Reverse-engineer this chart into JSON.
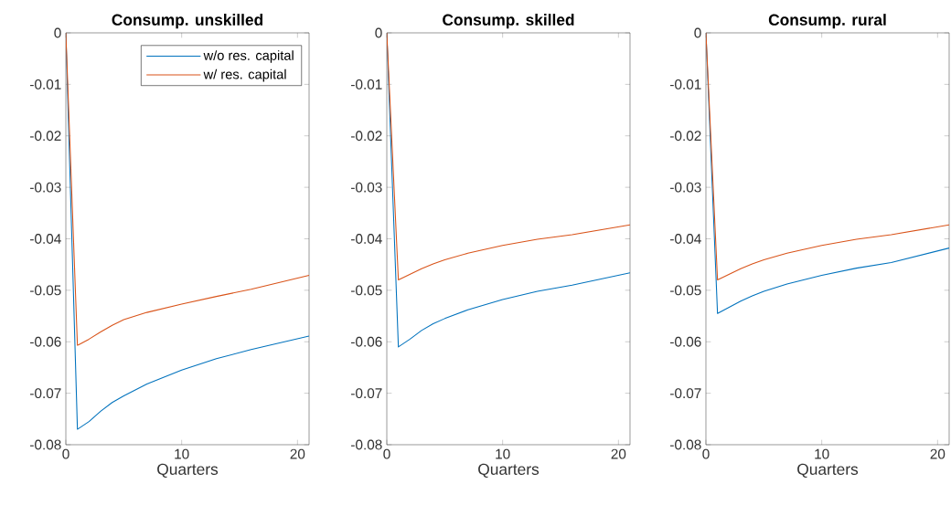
{
  "chart_data": [
    {
      "type": "line",
      "title": "Consump. unskilled",
      "xlabel": "Quarters",
      "x": [
        0,
        1,
        2,
        3,
        4,
        5,
        7,
        10,
        13,
        16,
        21
      ],
      "xlim": [
        0,
        21
      ],
      "xticks": [
        0,
        10,
        20
      ],
      "ylim": [
        -0.08,
        0
      ],
      "yticks": [
        -0.08,
        -0.07,
        -0.06,
        -0.05,
        -0.04,
        -0.03,
        -0.02,
        -0.01,
        0
      ],
      "legend": "top right",
      "series": [
        {
          "name": "w/o res. capital",
          "color": "#0072bd",
          "values": [
            0,
            -0.077,
            -0.0755,
            -0.0735,
            -0.0718,
            -0.0705,
            -0.0682,
            -0.0655,
            -0.0633,
            -0.0615,
            -0.0589
          ]
        },
        {
          "name": "w/ res. capital",
          "color": "#d95319",
          "values": [
            0,
            -0.0607,
            -0.0595,
            -0.0581,
            -0.0568,
            -0.0557,
            -0.0543,
            -0.0527,
            -0.0512,
            -0.0498,
            -0.0471
          ]
        }
      ]
    },
    {
      "type": "line",
      "title": "Consump. skilled",
      "xlabel": "Quarters",
      "x": [
        0,
        1,
        2,
        3,
        4,
        5,
        7,
        10,
        13,
        16,
        21
      ],
      "xlim": [
        0,
        21
      ],
      "xticks": [
        0,
        10,
        20
      ],
      "ylim": [
        -0.08,
        0
      ],
      "yticks": [
        -0.08,
        -0.07,
        -0.06,
        -0.05,
        -0.04,
        -0.03,
        -0.02,
        -0.01,
        0
      ],
      "series": [
        {
          "color": "#0072bd",
          "values": [
            0,
            -0.061,
            -0.0595,
            -0.0578,
            -0.0565,
            -0.0555,
            -0.0538,
            -0.0518,
            -0.0502,
            -0.049,
            -0.0466
          ]
        },
        {
          "color": "#d95319",
          "values": [
            0,
            -0.048,
            -0.0469,
            -0.0458,
            -0.0449,
            -0.0441,
            -0.0428,
            -0.0413,
            -0.0401,
            -0.0392,
            -0.0373
          ]
        }
      ]
    },
    {
      "type": "line",
      "title": "Consump. rural",
      "xlabel": "Quarters",
      "x": [
        0,
        1,
        2,
        3,
        4,
        5,
        7,
        10,
        13,
        16,
        21
      ],
      "xlim": [
        0,
        21
      ],
      "xticks": [
        0,
        10,
        20
      ],
      "ylim": [
        -0.08,
        0
      ],
      "yticks": [
        -0.08,
        -0.07,
        -0.06,
        -0.05,
        -0.04,
        -0.03,
        -0.02,
        -0.01,
        0
      ],
      "series": [
        {
          "color": "#0072bd",
          "values": [
            0,
            -0.0545,
            -0.0533,
            -0.0521,
            -0.0511,
            -0.0502,
            -0.0488,
            -0.0471,
            -0.0457,
            -0.0446,
            -0.0418
          ]
        },
        {
          "color": "#d95319",
          "values": [
            0,
            -0.048,
            -0.0469,
            -0.0458,
            -0.0449,
            -0.0441,
            -0.0428,
            -0.0413,
            -0.0401,
            -0.0392,
            -0.0373
          ]
        }
      ]
    }
  ]
}
